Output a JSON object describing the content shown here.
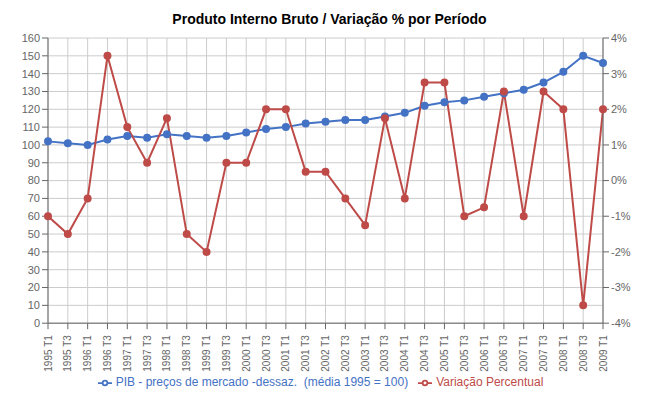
{
  "chart_data": {
    "type": "line",
    "title": "Produto Interno Bruto / Variação % por Período",
    "categories": [
      "1995 T1",
      "1995 T3",
      "1996 T1",
      "1996 T3",
      "1997 T1",
      "1997 T3",
      "1998 T1",
      "1998 T3",
      "1999 T1",
      "1999 T3",
      "2000 T1",
      "2000 T3",
      "2001 T1",
      "2001 T3",
      "2002 T1",
      "2002 T3",
      "2003 T1",
      "2003 T3",
      "2004 T1",
      "2004 T3",
      "2005 T1",
      "2005 T3",
      "2006 T1",
      "2006 T3",
      "2007 T1",
      "2007 T3",
      "2008 T1",
      "2008 T3",
      "2009 T1"
    ],
    "series": [
      {
        "name": "PIB - preços de mercado -dessaz.  (média 1995 = 100)",
        "color": "#4472C4",
        "marker": "circle",
        "values": [
          102,
          101,
          100,
          103,
          105,
          104,
          106,
          105,
          104,
          105,
          107,
          109,
          110,
          112,
          113,
          114,
          114,
          116,
          118,
          122,
          124,
          125,
          127,
          129,
          131,
          135,
          141,
          150,
          146
        ]
      },
      {
        "name": "Variação Percentual",
        "color": "#BE4B48",
        "marker": "circle",
        "axis": "y2",
        "values": [
          -1.0,
          -1.5,
          -0.5,
          3.5,
          1.5,
          0.5,
          1.75,
          -1.5,
          -2.0,
          0.5,
          0.5,
          2.0,
          2.0,
          0.25,
          0.25,
          -0.5,
          -1.25,
          1.75,
          -0.5,
          2.75,
          2.75,
          -1.0,
          -0.75,
          2.5,
          -1.0,
          2.5,
          2.0,
          -3.5,
          2.0
        ]
      }
    ],
    "ylim": [
      0,
      160
    ],
    "yticks": [
      0,
      10,
      20,
      30,
      40,
      50,
      60,
      70,
      80,
      90,
      100,
      110,
      120,
      130,
      140,
      150,
      160
    ],
    "y2lim": [
      -4,
      4
    ],
    "y2ticks": [
      {
        "value": -4,
        "label": "-4%"
      },
      {
        "value": -3,
        "label": "-3%"
      },
      {
        "value": -2,
        "label": "-2%"
      },
      {
        "value": -1,
        "label": "-1%"
      },
      {
        "value": 0,
        "label": "0%"
      },
      {
        "value": 1,
        "label": "1%"
      },
      {
        "value": 2,
        "label": "2%"
      },
      {
        "value": 3,
        "label": "3%"
      },
      {
        "value": 4,
        "label": "4%"
      }
    ],
    "grid": true,
    "legend": "bottom"
  }
}
